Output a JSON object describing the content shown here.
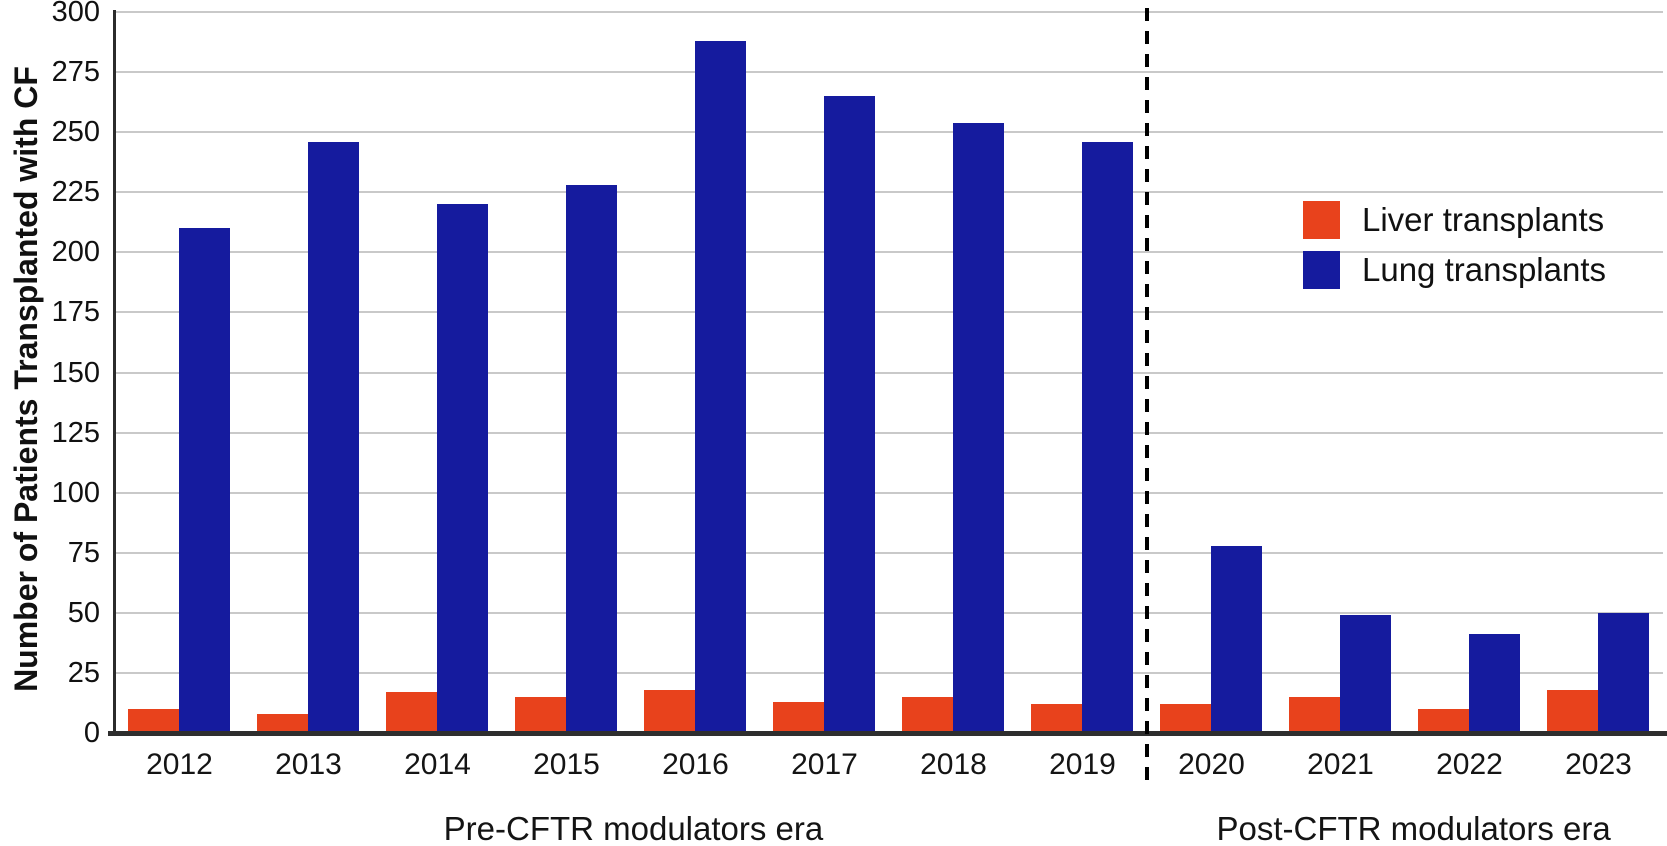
{
  "figure": {
    "y_axis_title": "Number of Patients Transplanted with CF"
  },
  "legend": {
    "items": [
      {
        "label": "Liver transplants",
        "color": "#e8421c"
      },
      {
        "label": "Lung transplants",
        "color": "#151b9e"
      }
    ]
  },
  "colors": {
    "liver_bar": "#e8421c",
    "lung_bar": "#151b9e",
    "gridline": "#c9c9c9",
    "axis": "#2b2b2b",
    "divider": "#000000",
    "background": "#ffffff"
  },
  "chart_data": {
    "type": "bar",
    "title": "",
    "categories": [
      "2012",
      "2013",
      "2014",
      "2015",
      "2016",
      "2017",
      "2018",
      "2019",
      "2020",
      "2021",
      "2022",
      "2023"
    ],
    "series": [
      {
        "name": "Liver transplants",
        "color": "#e8421c",
        "values": [
          10,
          8,
          17,
          15,
          18,
          13,
          15,
          12,
          12,
          15,
          10,
          18
        ]
      },
      {
        "name": "Lung transplants",
        "color": "#151b9e",
        "values": [
          210,
          246,
          220,
          228,
          288,
          265,
          254,
          246,
          78,
          49,
          41,
          50
        ]
      }
    ],
    "xlabel": "",
    "ylabel": "Number of Patients Transplanted with CF",
    "ylim": [
      0,
      300
    ],
    "yticks": [
      0,
      25,
      50,
      75,
      100,
      125,
      150,
      175,
      200,
      225,
      250,
      275,
      300
    ],
    "grid": true,
    "legend_position": "upper right",
    "annotations": {
      "divider_between": [
        "2019",
        "2020"
      ],
      "pre_label": "Pre-CFTR modulators era",
      "post_label": "Post-CFTR modulators era",
      "pre_label_center_x_frac": 0.38,
      "post_label_center_x_frac": 0.848
    }
  }
}
